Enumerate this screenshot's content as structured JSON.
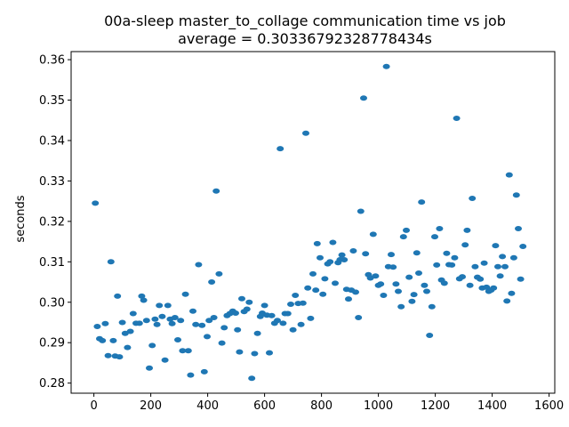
{
  "chart_data": {
    "type": "scatter",
    "title": "00a-sleep master_to_collage communication time vs job",
    "subtitle": "average = 0.30336792328778434s",
    "xlabel": "",
    "ylabel": "seconds",
    "xlim": [
      -80,
      1620
    ],
    "ylim": [
      0.2775,
      0.362
    ],
    "xticks": [
      "0",
      "200",
      "400",
      "600",
      "800",
      "1000",
      "1200",
      "1400",
      "1600"
    ],
    "yticks": [
      "0.28",
      "0.29",
      "0.30",
      "0.31",
      "0.32",
      "0.33",
      "0.34",
      "0.35",
      "0.36"
    ],
    "grid": false,
    "marker_color": "#1f77b4",
    "series": [
      {
        "points": [
          [
            5,
            0.3245
          ],
          [
            12,
            0.294
          ],
          [
            20,
            0.291
          ],
          [
            30,
            0.2905
          ],
          [
            40,
            0.2947
          ],
          [
            50,
            0.2868
          ],
          [
            60,
            0.31
          ],
          [
            68,
            0.2905
          ],
          [
            75,
            0.2867
          ],
          [
            83,
            0.3015
          ],
          [
            90,
            0.2865
          ],
          [
            100,
            0.295
          ],
          [
            110,
            0.2923
          ],
          [
            118,
            0.2888
          ],
          [
            128,
            0.2928
          ],
          [
            138,
            0.2972
          ],
          [
            148,
            0.2948
          ],
          [
            160,
            0.2948
          ],
          [
            168,
            0.3015
          ],
          [
            175,
            0.3005
          ],
          [
            185,
            0.2955
          ],
          [
            195,
            0.2837
          ],
          [
            205,
            0.2893
          ],
          [
            215,
            0.2958
          ],
          [
            222,
            0.2945
          ],
          [
            230,
            0.2992
          ],
          [
            240,
            0.2965
          ],
          [
            250,
            0.2857
          ],
          [
            260,
            0.2992
          ],
          [
            268,
            0.2958
          ],
          [
            275,
            0.2947
          ],
          [
            285,
            0.2962
          ],
          [
            295,
            0.2907
          ],
          [
            305,
            0.2955
          ],
          [
            312,
            0.288
          ],
          [
            322,
            0.302
          ],
          [
            332,
            0.288
          ],
          [
            340,
            0.282
          ],
          [
            348,
            0.2978
          ],
          [
            358,
            0.2945
          ],
          [
            368,
            0.3093
          ],
          [
            380,
            0.2943
          ],
          [
            388,
            0.2828
          ],
          [
            398,
            0.2915
          ],
          [
            405,
            0.2955
          ],
          [
            414,
            0.305
          ],
          [
            422,
            0.2962
          ],
          [
            430,
            0.3275
          ],
          [
            440,
            0.307
          ],
          [
            450,
            0.2899
          ],
          [
            458,
            0.2937
          ],
          [
            468,
            0.2967
          ],
          [
            478,
            0.2972
          ],
          [
            488,
            0.2978
          ],
          [
            498,
            0.2973
          ],
          [
            505,
            0.2932
          ],
          [
            512,
            0.2877
          ],
          [
            520,
            0.3009
          ],
          [
            528,
            0.2977
          ],
          [
            538,
            0.2983
          ],
          [
            546,
            0.3
          ],
          [
            555,
            0.2812
          ],
          [
            565,
            0.2873
          ],
          [
            575,
            0.2923
          ],
          [
            585,
            0.2965
          ],
          [
            592,
            0.2973
          ],
          [
            600,
            0.2992
          ],
          [
            608,
            0.2968
          ],
          [
            617,
            0.2875
          ],
          [
            625,
            0.2967
          ],
          [
            635,
            0.2948
          ],
          [
            645,
            0.2955
          ],
          [
            655,
            0.338
          ],
          [
            665,
            0.2948
          ],
          [
            672,
            0.2972
          ],
          [
            682,
            0.2972
          ],
          [
            692,
            0.2995
          ],
          [
            700,
            0.2932
          ],
          [
            708,
            0.3017
          ],
          [
            718,
            0.2997
          ],
          [
            728,
            0.2945
          ],
          [
            735,
            0.2998
          ],
          [
            745,
            0.3418
          ],
          [
            752,
            0.3035
          ],
          [
            762,
            0.296
          ],
          [
            770,
            0.307
          ],
          [
            780,
            0.303
          ],
          [
            785,
            0.3145
          ],
          [
            795,
            0.311
          ],
          [
            805,
            0.302
          ],
          [
            812,
            0.3058
          ],
          [
            822,
            0.3095
          ],
          [
            830,
            0.31
          ],
          [
            840,
            0.3148
          ],
          [
            848,
            0.3047
          ],
          [
            858,
            0.3098
          ],
          [
            865,
            0.3105
          ],
          [
            872,
            0.3117
          ],
          [
            880,
            0.3105
          ],
          [
            888,
            0.3032
          ],
          [
            895,
            0.3008
          ],
          [
            905,
            0.303
          ],
          [
            912,
            0.3127
          ],
          [
            920,
            0.3025
          ],
          [
            930,
            0.2962
          ],
          [
            938,
            0.3225
          ],
          [
            948,
            0.3505
          ],
          [
            955,
            0.312
          ],
          [
            965,
            0.3068
          ],
          [
            972,
            0.306
          ],
          [
            982,
            0.3168
          ],
          [
            990,
            0.3065
          ],
          [
            1000,
            0.3042
          ],
          [
            1008,
            0.3045
          ],
          [
            1018,
            0.3017
          ],
          [
            1028,
            0.3583
          ],
          [
            1035,
            0.3088
          ],
          [
            1045,
            0.3118
          ],
          [
            1052,
            0.3087
          ],
          [
            1062,
            0.3045
          ],
          [
            1070,
            0.3027
          ],
          [
            1080,
            0.2989
          ],
          [
            1088,
            0.3162
          ],
          [
            1098,
            0.3178
          ],
          [
            1108,
            0.3062
          ],
          [
            1118,
            0.3002
          ],
          [
            1125,
            0.3019
          ],
          [
            1135,
            0.3122
          ],
          [
            1142,
            0.3072
          ],
          [
            1152,
            0.3248
          ],
          [
            1162,
            0.3042
          ],
          [
            1170,
            0.3027
          ],
          [
            1180,
            0.2918
          ],
          [
            1188,
            0.2989
          ],
          [
            1198,
            0.3162
          ],
          [
            1205,
            0.3092
          ],
          [
            1215,
            0.3182
          ],
          [
            1222,
            0.3055
          ],
          [
            1232,
            0.3047
          ],
          [
            1240,
            0.3121
          ],
          [
            1248,
            0.3093
          ],
          [
            1258,
            0.3092
          ],
          [
            1268,
            0.311
          ],
          [
            1275,
            0.3455
          ],
          [
            1285,
            0.3058
          ],
          [
            1295,
            0.3063
          ],
          [
            1305,
            0.3142
          ],
          [
            1312,
            0.3178
          ],
          [
            1322,
            0.3042
          ],
          [
            1330,
            0.3257
          ],
          [
            1340,
            0.3088
          ],
          [
            1348,
            0.3062
          ],
          [
            1358,
            0.3057
          ],
          [
            1365,
            0.3035
          ],
          [
            1372,
            0.3097
          ],
          [
            1380,
            0.3037
          ],
          [
            1388,
            0.3027
          ],
          [
            1396,
            0.303
          ],
          [
            1405,
            0.3035
          ],
          [
            1412,
            0.314
          ],
          [
            1420,
            0.3088
          ],
          [
            1428,
            0.3065
          ],
          [
            1436,
            0.3113
          ],
          [
            1445,
            0.3088
          ],
          [
            1452,
            0.3003
          ],
          [
            1460,
            0.3315
          ],
          [
            1468,
            0.3022
          ],
          [
            1476,
            0.311
          ],
          [
            1485,
            0.3265
          ],
          [
            1492,
            0.3182
          ],
          [
            1500,
            0.3057
          ],
          [
            1508,
            0.3138
          ]
        ]
      }
    ]
  }
}
